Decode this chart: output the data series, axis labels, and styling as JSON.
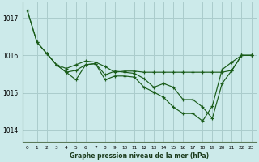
{
  "title": "Graphe pression niveau de la mer (hPa)",
  "bg_color": "#cceaea",
  "grid_color": "#aacccc",
  "line_color": "#1a5c1a",
  "xlim": [
    -0.5,
    23.5
  ],
  "ylim": [
    1013.7,
    1017.4
  ],
  "yticks": [
    1014,
    1015,
    1016,
    1017
  ],
  "xtick_labels": [
    "0",
    "1",
    "2",
    "3",
    "4",
    "5",
    "6",
    "7",
    "8",
    "9",
    "10",
    "11",
    "12",
    "13",
    "14",
    "15",
    "16",
    "17",
    "18",
    "19",
    "20",
    "21",
    "22",
    "23"
  ],
  "series": [
    {
      "x": [
        0,
        1,
        2,
        3,
        4,
        5,
        6,
        7,
        8,
        9,
        10,
        11,
        12,
        13,
        14,
        15,
        16,
        17,
        18,
        19,
        20,
        21,
        22,
        23
      ],
      "y": [
        1017.2,
        1016.35,
        1016.05,
        1015.75,
        1015.65,
        1015.75,
        1015.85,
        1015.82,
        1015.7,
        1015.55,
        1015.58,
        1015.58,
        1015.55,
        1015.55,
        1015.55,
        1015.55,
        1015.55,
        1015.55,
        1015.55,
        1015.55,
        1015.55,
        1015.6,
        1016.0,
        1016.0
      ]
    },
    {
      "x": [
        0,
        1,
        2,
        3,
        4,
        5,
        6,
        7,
        8,
        9,
        10,
        11,
        12,
        13,
        14,
        15,
        16,
        17,
        18,
        19,
        20,
        21,
        22,
        23
      ],
      "y": [
        1017.2,
        1016.35,
        1016.05,
        1015.75,
        1015.55,
        1015.6,
        1015.75,
        1015.78,
        1015.48,
        1015.58,
        1015.55,
        1015.52,
        1015.38,
        1015.15,
        1015.25,
        1015.15,
        1014.82,
        1014.82,
        1014.62,
        1014.32,
        1015.25,
        1015.6,
        1016.0,
        1016.0
      ]
    },
    {
      "x": [
        2,
        3,
        4,
        5,
        6,
        7,
        8,
        9,
        10,
        11,
        12,
        13,
        14,
        15,
        16,
        17,
        18,
        19,
        20,
        21,
        22,
        23
      ],
      "y": [
        1016.05,
        1015.75,
        1015.55,
        1015.35,
        1015.75,
        1015.78,
        1015.35,
        1015.45,
        1015.45,
        1015.42,
        1015.15,
        1015.02,
        1014.88,
        1014.62,
        1014.45,
        1014.45,
        1014.25,
        1014.65,
        1015.62,
        1015.82,
        1016.0,
        1016.0
      ]
    }
  ]
}
